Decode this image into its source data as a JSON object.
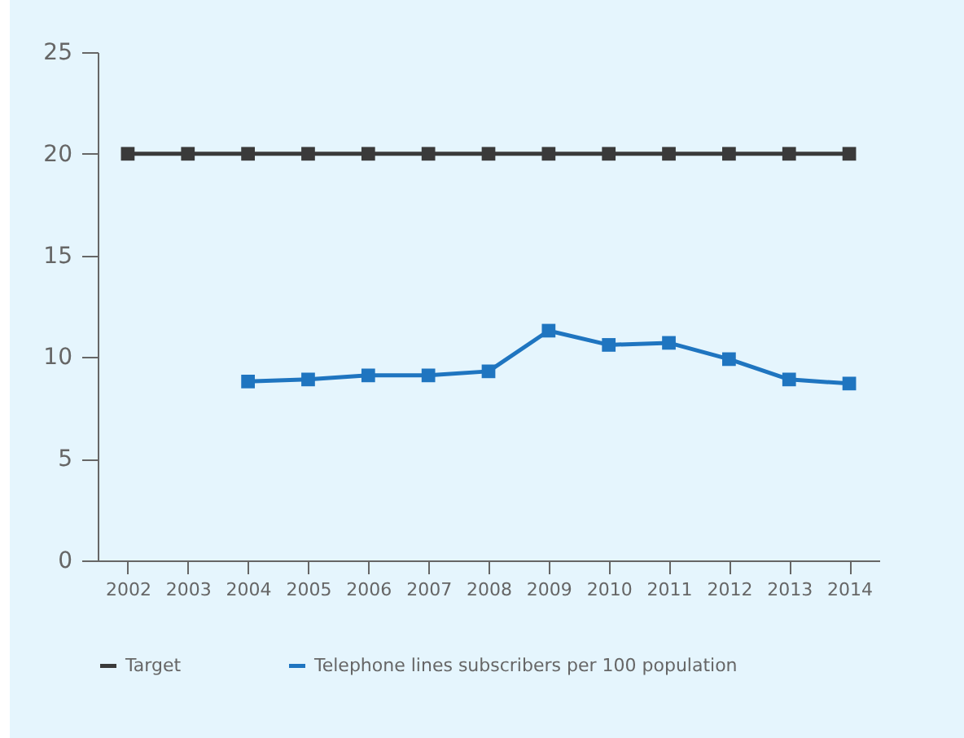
{
  "chart_data": {
    "type": "line",
    "categories": [
      "2002",
      "2003",
      "2004",
      "2005",
      "2006",
      "2007",
      "2008",
      "2009",
      "2010",
      "2011",
      "2012",
      "2013",
      "2014"
    ],
    "series": [
      {
        "name": "Target",
        "color": "#3a3a3a",
        "values": [
          20,
          20,
          20,
          20,
          20,
          20,
          20,
          20,
          20,
          20,
          20,
          20,
          20
        ]
      },
      {
        "name": "Telephone lines subscribers per 100 population",
        "color": "#1f75c0",
        "values": [
          null,
          null,
          8.8,
          8.9,
          9.1,
          9.1,
          9.3,
          11.3,
          10.6,
          10.7,
          9.9,
          8.9,
          8.7
        ]
      }
    ],
    "ylim": [
      0,
      25
    ],
    "yticks": [
      0,
      5,
      10,
      15,
      20,
      25
    ],
    "grid": false,
    "legend": "bottom",
    "marker": "square",
    "line_style": "solid"
  }
}
